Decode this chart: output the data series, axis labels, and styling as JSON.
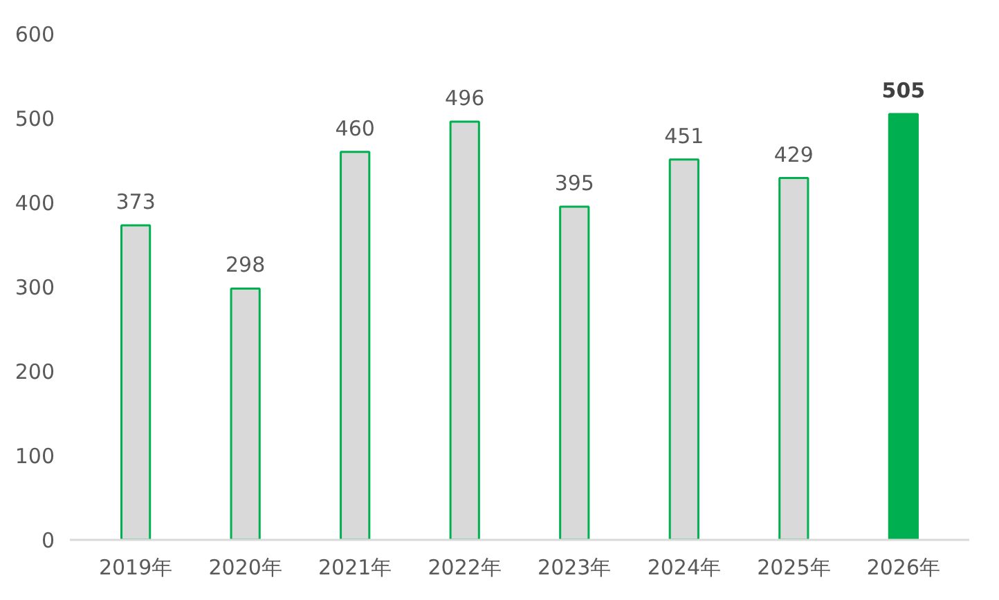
{
  "chart_data": {
    "type": "bar",
    "categories": [
      "2019年",
      "2020年",
      "2021年",
      "2022年",
      "2023年",
      "2024年",
      "2025年",
      "2026年"
    ],
    "values": [
      373,
      298,
      460,
      496,
      395,
      451,
      429,
      505
    ],
    "colors": [
      "#d9d9d9",
      "#d9d9d9",
      "#d9d9d9",
      "#d9d9d9",
      "#d9d9d9",
      "#d9d9d9",
      "#d9d9d9",
      "#00b050"
    ],
    "ylim": [
      0,
      600
    ],
    "yticks": [
      0,
      100,
      200,
      300,
      400,
      500,
      600
    ],
    "grid": false,
    "data_labels": true
  }
}
